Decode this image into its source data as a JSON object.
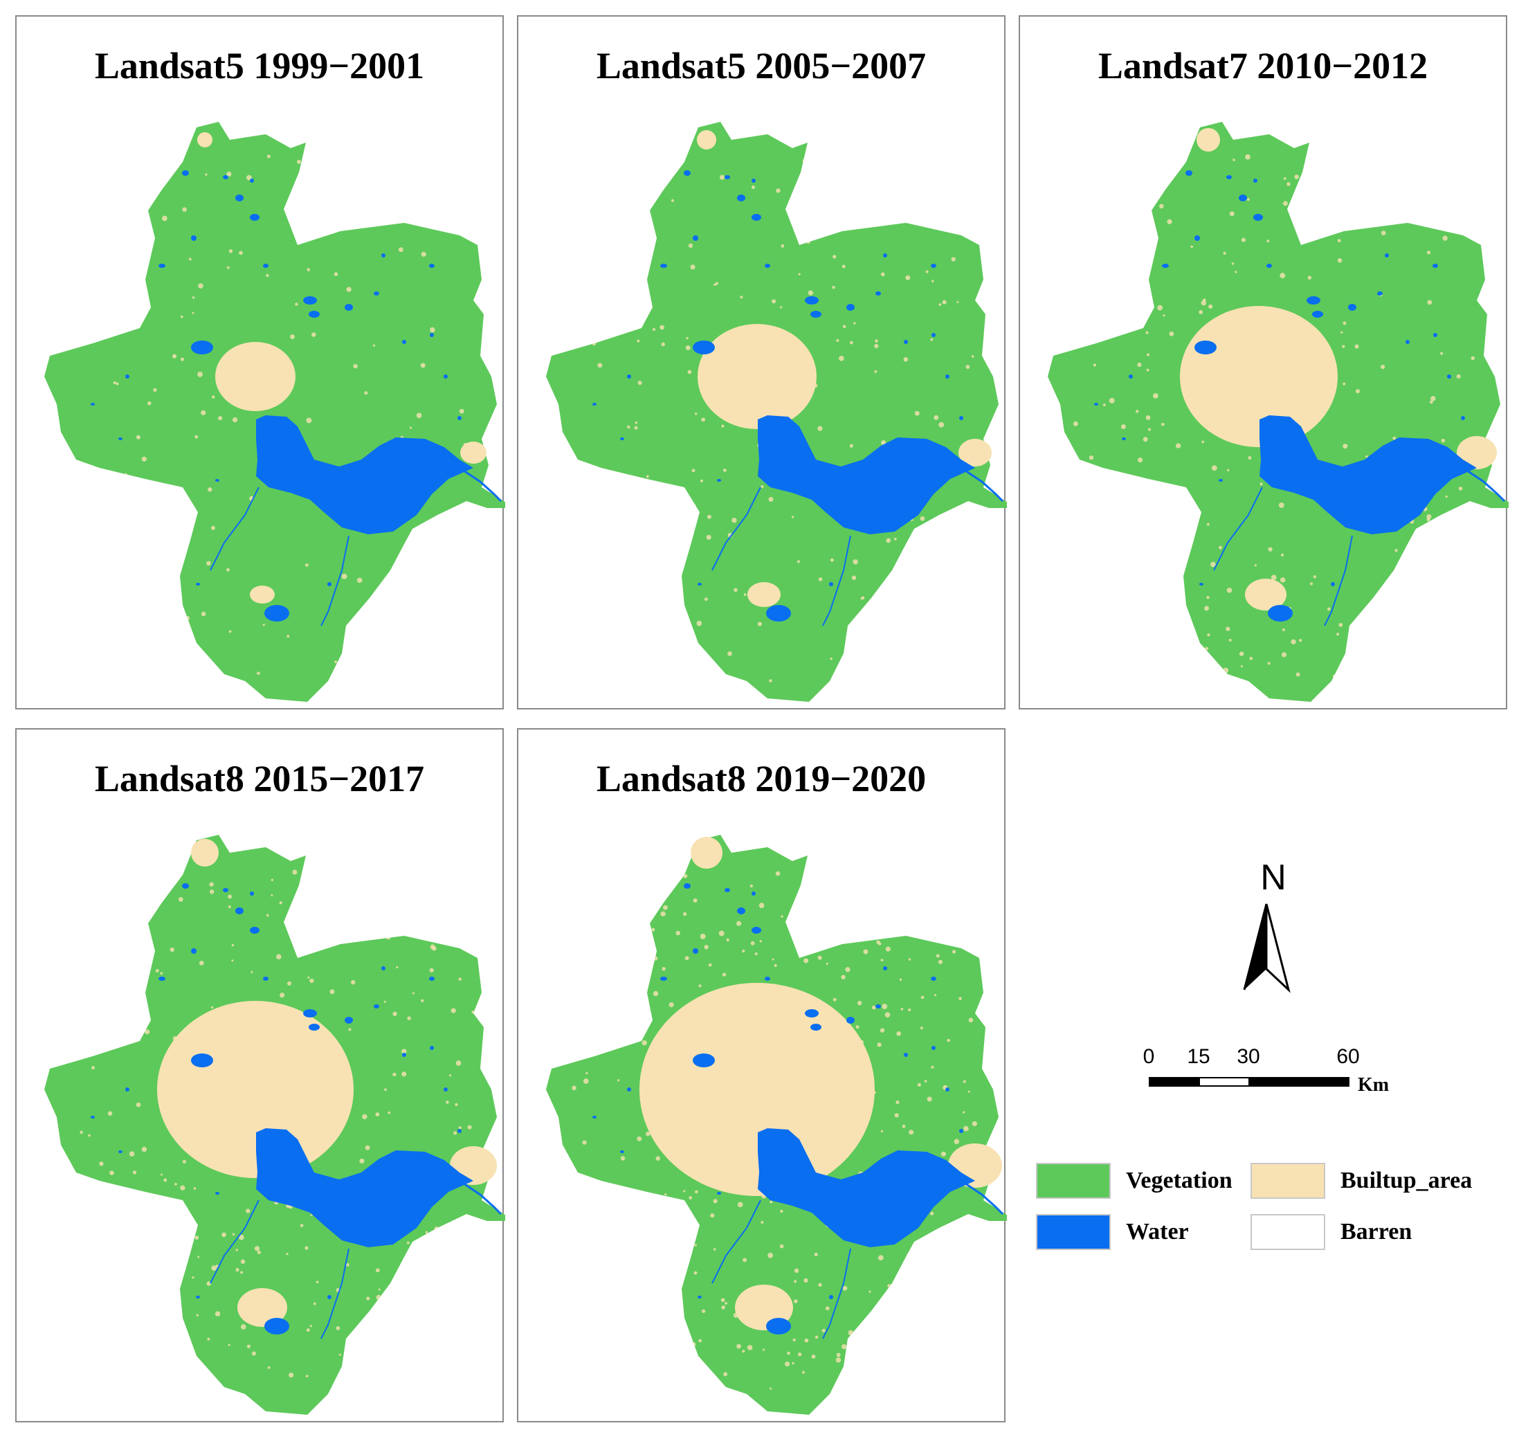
{
  "panels": [
    {
      "title": "Landsat5 1999−2001",
      "built_level": 1
    },
    {
      "title": "Landsat5 2005−2007",
      "built_level": 2
    },
    {
      "title": "Landsat7 2010−2012",
      "built_level": 3
    },
    {
      "title": "Landsat8 2015−2017",
      "built_level": 4
    },
    {
      "title": "Landsat8 2019−2020",
      "built_level": 5
    }
  ],
  "north_arrow": {
    "letter": "N"
  },
  "scale_bar": {
    "ticks": [
      "0",
      "15",
      "30",
      "60"
    ],
    "unit": "Km"
  },
  "legend": [
    {
      "label": "Vegetation",
      "color": "#5dc95a"
    },
    {
      "label": "Builtup_area",
      "color": "#f8e2b3"
    },
    {
      "label": "Water",
      "color": "#0a6ef0"
    },
    {
      "label": "Barren",
      "color": "#ffffff"
    }
  ],
  "colors": {
    "vegetation": "#5dc95a",
    "builtup": "#f8e2b3",
    "water": "#0a6ef0"
  }
}
